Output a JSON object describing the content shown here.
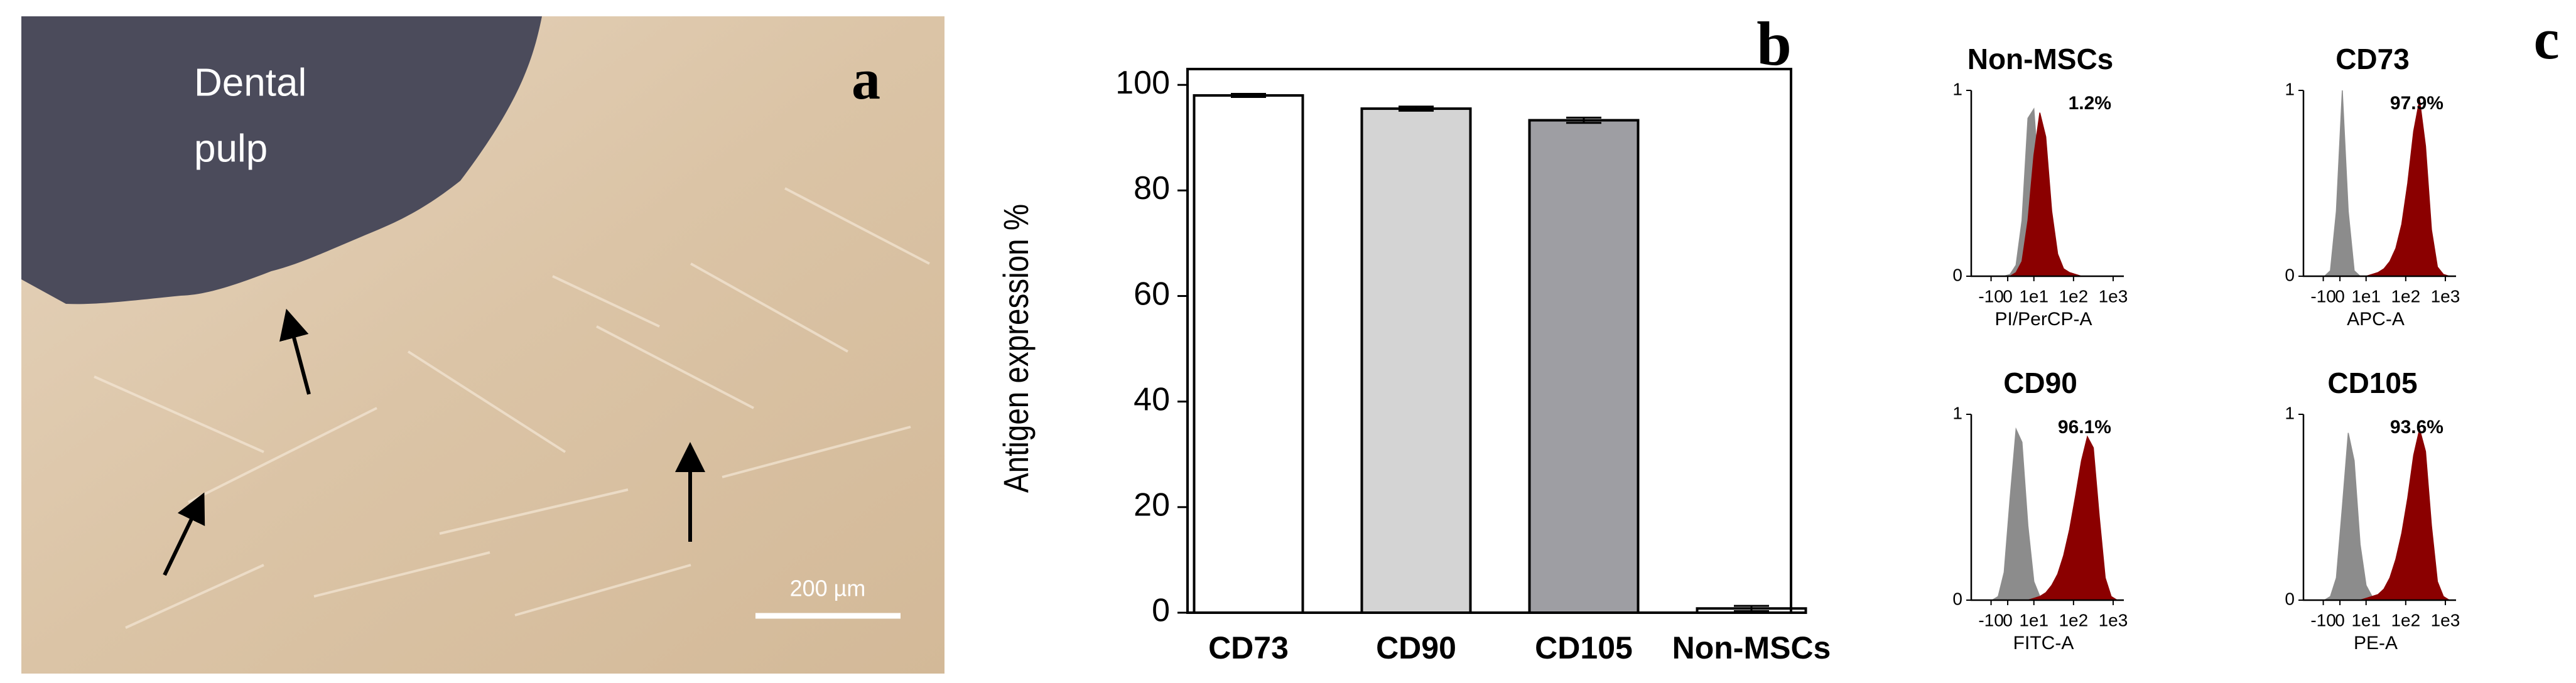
{
  "panel_a": {
    "label": "a",
    "annotation": [
      "Dental",
      "pulp"
    ],
    "scale_bar": "200 µm"
  },
  "panel_b_label": "b",
  "panel_c_label": "c",
  "chart_data": [
    {
      "type": "bar",
      "ylabel": "Antigen expression %",
      "categories": [
        "CD73",
        "CD90",
        "CD105",
        "Non-MSCs"
      ],
      "values": [
        98,
        95.5,
        93.3,
        0.8
      ],
      "errors": [
        0.3,
        0.4,
        0.5,
        0.5
      ],
      "colors": [
        "#ffffff",
        "#d4d4d4",
        "#9e9ea3",
        "#ffffff"
      ],
      "ylim": [
        0,
        103
      ],
      "yticks": [
        0,
        20,
        40,
        60,
        80,
        100
      ]
    },
    {
      "type": "area",
      "title": "Non-MSCs",
      "xlabel": "PI/PerCP-A",
      "annotation": "1.2%",
      "x": [
        -0.2,
        -0.05,
        0.1,
        0.25,
        0.4,
        0.55,
        0.7,
        0.85,
        1.0,
        1.15,
        1.3,
        1.45,
        1.6,
        1.75,
        1.9,
        2.05,
        2.2,
        2.35,
        2.5,
        2.65,
        2.8,
        2.95,
        3.1
      ],
      "xlim": [
        -0.58,
        3.27
      ],
      "xticks": [
        {
          "value": -0.08,
          "label": "-10"
        },
        {
          "value": 0.34,
          "label": "0"
        },
        {
          "value": 1,
          "label": "1e1"
        },
        {
          "value": 2,
          "label": "1e2"
        },
        {
          "value": 3,
          "label": "1e3"
        }
      ],
      "ylim": [
        0,
        1
      ],
      "yticks": [
        0,
        1
      ],
      "series": [
        {
          "color": "#8c8c8c",
          "values": [
            0,
            0,
            0,
            0,
            0.01,
            0.06,
            0.3,
            0.85,
            0.9,
            0.45,
            0.12,
            0.03,
            0.01,
            0,
            0,
            0,
            0,
            0,
            0,
            0,
            0,
            0,
            0
          ]
        },
        {
          "color": "#8b0000",
          "values": [
            0,
            0,
            0,
            0,
            0,
            0.02,
            0.08,
            0.3,
            0.65,
            0.88,
            0.75,
            0.35,
            0.12,
            0.04,
            0.02,
            0.01,
            0,
            0,
            0,
            0,
            0,
            0,
            0
          ]
        }
      ]
    },
    {
      "type": "area",
      "title": "CD73",
      "xlabel": "APC-A",
      "annotation": "97.9%",
      "x": [
        -0.2,
        -0.05,
        0.1,
        0.25,
        0.4,
        0.55,
        0.7,
        0.85,
        1.0,
        1.15,
        1.3,
        1.45,
        1.6,
        1.75,
        1.9,
        2.05,
        2.2,
        2.35,
        2.5,
        2.65,
        2.8,
        2.95,
        3.1
      ],
      "xlim": [
        -0.58,
        3.27
      ],
      "xticks": [
        {
          "value": -0.08,
          "label": "-10"
        },
        {
          "value": 0.34,
          "label": "0"
        },
        {
          "value": 1,
          "label": "1e1"
        },
        {
          "value": 2,
          "label": "1e2"
        },
        {
          "value": 3,
          "label": "1e3"
        }
      ],
      "ylim": [
        0,
        1
      ],
      "yticks": [
        0,
        1
      ],
      "series": [
        {
          "color": "#8c8c8c",
          "values": [
            0,
            0,
            0.03,
            0.35,
            1,
            0.35,
            0.03,
            0,
            0,
            0,
            0,
            0,
            0,
            0,
            0,
            0,
            0,
            0,
            0,
            0,
            0,
            0,
            0
          ]
        },
        {
          "color": "#8b0000",
          "values": [
            0,
            0,
            0,
            0,
            0,
            0,
            0,
            0,
            0,
            0.01,
            0.02,
            0.04,
            0.08,
            0.15,
            0.28,
            0.5,
            0.78,
            0.95,
            0.7,
            0.25,
            0.05,
            0.01,
            0
          ]
        }
      ]
    },
    {
      "type": "area",
      "title": "CD90",
      "xlabel": "FITC-A",
      "annotation": "96.1%",
      "x": [
        -0.2,
        -0.05,
        0.1,
        0.25,
        0.4,
        0.55,
        0.7,
        0.85,
        1.0,
        1.15,
        1.3,
        1.45,
        1.6,
        1.75,
        1.9,
        2.05,
        2.2,
        2.35,
        2.5,
        2.65,
        2.8,
        2.95,
        3.1
      ],
      "xlim": [
        -0.58,
        3.27
      ],
      "xticks": [
        {
          "value": -0.08,
          "label": "-10"
        },
        {
          "value": 0.34,
          "label": "0"
        },
        {
          "value": 1,
          "label": "1e1"
        },
        {
          "value": 2,
          "label": "1e2"
        },
        {
          "value": 3,
          "label": "1e3"
        }
      ],
      "ylim": [
        0,
        1
      ],
      "yticks": [
        0,
        1
      ],
      "series": [
        {
          "color": "#8c8c8c",
          "values": [
            0,
            0,
            0.02,
            0.15,
            0.55,
            0.92,
            0.85,
            0.4,
            0.1,
            0.02,
            0,
            0,
            0,
            0,
            0,
            0,
            0,
            0,
            0,
            0,
            0,
            0,
            0
          ]
        },
        {
          "color": "#8b0000",
          "values": [
            0,
            0,
            0,
            0,
            0,
            0,
            0,
            0,
            0.01,
            0.02,
            0.04,
            0.08,
            0.14,
            0.24,
            0.38,
            0.56,
            0.75,
            0.88,
            0.82,
            0.45,
            0.12,
            0.02,
            0
          ]
        }
      ]
    },
    {
      "type": "area",
      "title": "CD105",
      "xlabel": "PE-A",
      "annotation": "93.6%",
      "x": [
        -0.2,
        -0.05,
        0.1,
        0.25,
        0.4,
        0.55,
        0.7,
        0.85,
        1.0,
        1.15,
        1.3,
        1.45,
        1.6,
        1.75,
        1.9,
        2.05,
        2.2,
        2.35,
        2.5,
        2.65,
        2.8,
        2.95,
        3.1
      ],
      "xlim": [
        -0.58,
        3.27
      ],
      "xticks": [
        {
          "value": -0.08,
          "label": "-10"
        },
        {
          "value": 0.34,
          "label": "0"
        },
        {
          "value": 1,
          "label": "1e1"
        },
        {
          "value": 2,
          "label": "1e2"
        },
        {
          "value": 3,
          "label": "1e3"
        }
      ],
      "ylim": [
        0,
        1
      ],
      "yticks": [
        0,
        1
      ],
      "series": [
        {
          "color": "#8c8c8c",
          "values": [
            0,
            0,
            0.02,
            0.12,
            0.5,
            0.9,
            0.75,
            0.3,
            0.08,
            0.02,
            0,
            0,
            0,
            0,
            0,
            0,
            0,
            0,
            0,
            0,
            0,
            0,
            0
          ]
        },
        {
          "color": "#8b0000",
          "values": [
            0,
            0,
            0,
            0,
            0,
            0,
            0,
            0,
            0.01,
            0.02,
            0.03,
            0.06,
            0.12,
            0.22,
            0.36,
            0.55,
            0.78,
            0.92,
            0.8,
            0.4,
            0.1,
            0.02,
            0
          ]
        }
      ]
    }
  ]
}
